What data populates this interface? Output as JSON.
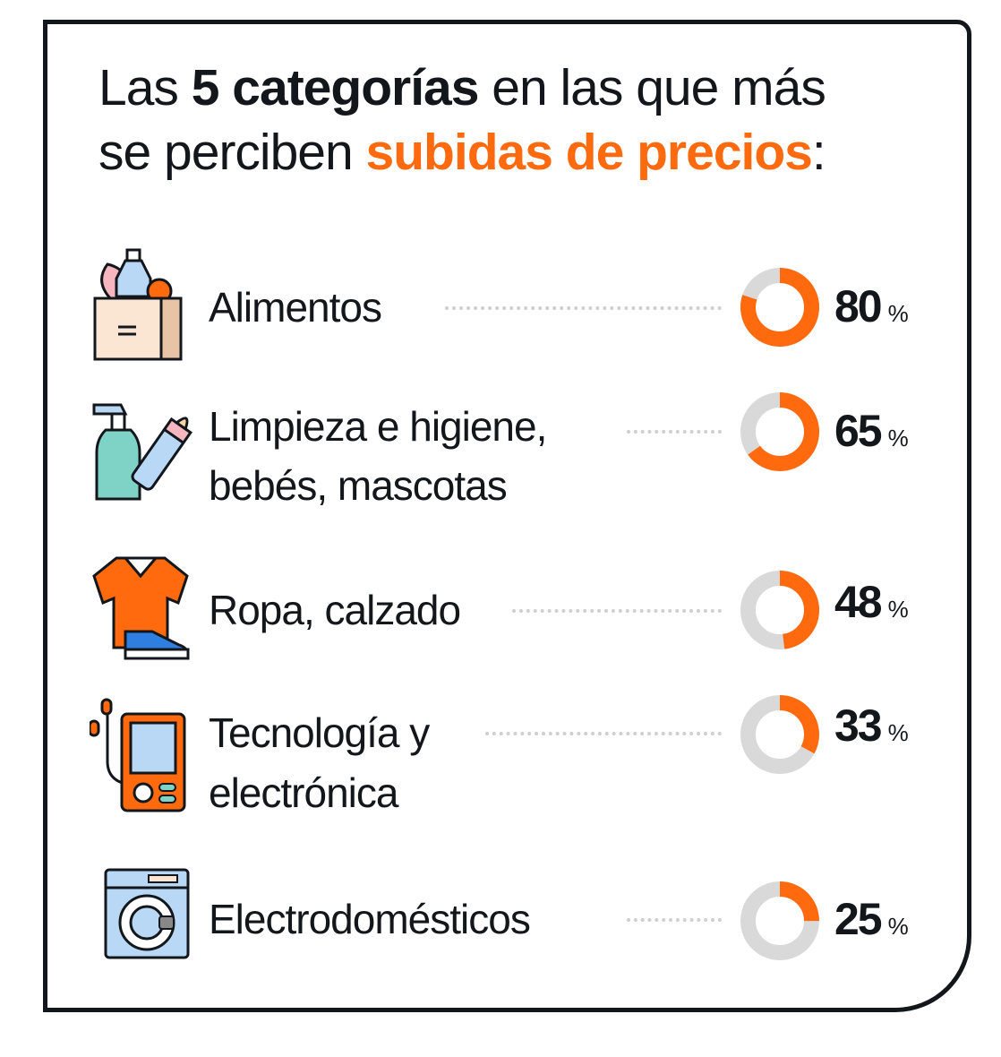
{
  "title": {
    "part1": "Las ",
    "bold": "5 categorías",
    "part2": " en las que más",
    "part3": "se perciben ",
    "highlight": "subidas de precios",
    "part4": ":"
  },
  "colors": {
    "accent": "#ff6a0e",
    "track": "#d9d9d9",
    "text": "#13171c"
  },
  "chart_data": {
    "type": "pie",
    "title": "Las 5 categorías en las que más se perciben subidas de precios:",
    "unit": "%",
    "categories": [
      "Alimentos",
      "Limpieza e higiene, bebés, mascotas",
      "Ropa, calzado",
      "Tecnología y electrónica",
      "Electrodomésticos"
    ],
    "values": [
      80,
      65,
      48,
      33,
      25
    ],
    "max": 100
  },
  "rows": [
    {
      "line1": "Alimentos",
      "line2": "",
      "value": "80",
      "pct": "%",
      "icon": "grocery-bag-icon"
    },
    {
      "line1": "Limpieza e higiene,",
      "line2": "bebés, mascotas",
      "value": "65",
      "pct": "%",
      "icon": "spray-bottle-icon"
    },
    {
      "line1": "Ropa, calzado",
      "line2": "",
      "value": "48",
      "pct": "%",
      "icon": "shirt-shoe-icon"
    },
    {
      "line1": "Tecnología y",
      "line2": "electrónica",
      "value": "33",
      "pct": "%",
      "icon": "music-player-icon"
    },
    {
      "line1": "Electrodomésticos",
      "line2": "",
      "value": "25",
      "pct": "%",
      "icon": "washing-machine-icon"
    }
  ]
}
